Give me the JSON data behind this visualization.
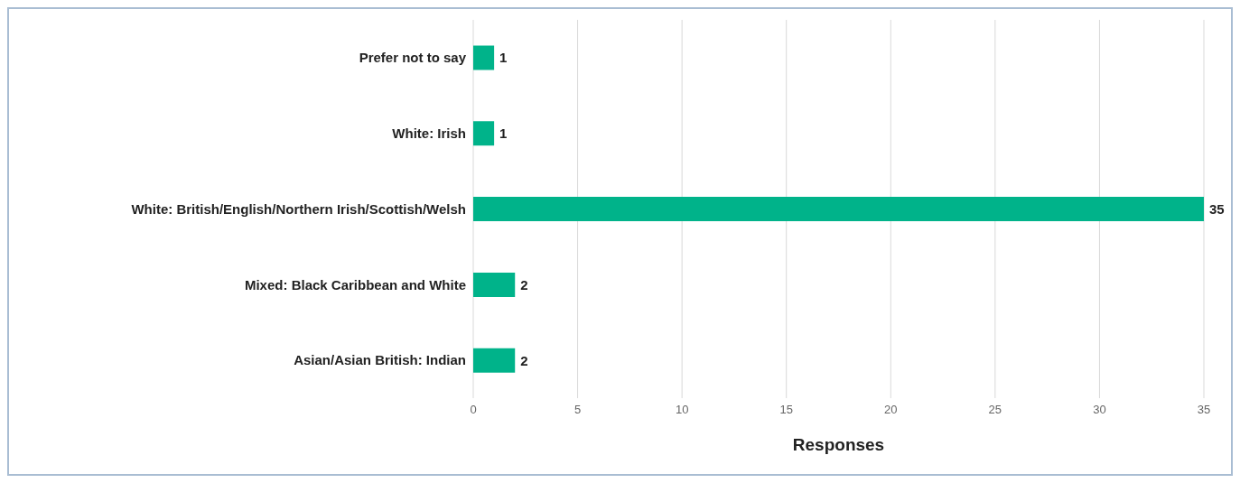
{
  "chart_data": {
    "type": "bar",
    "orientation": "horizontal",
    "xlabel": "Responses",
    "categories": [
      "Prefer not to say",
      "White: Irish",
      "White: British/English/Northern Irish/Scottish/Welsh",
      "Mixed: Black Caribbean and White",
      "Asian/Asian British: Indian"
    ],
    "values": [
      1,
      1,
      35,
      2,
      2
    ],
    "color": "#00b38a",
    "xlim": [
      0,
      35
    ],
    "xticks": [
      0,
      5,
      10,
      15,
      20,
      25,
      30,
      35
    ],
    "grid": "x",
    "data_labels": true,
    "legend": false
  }
}
